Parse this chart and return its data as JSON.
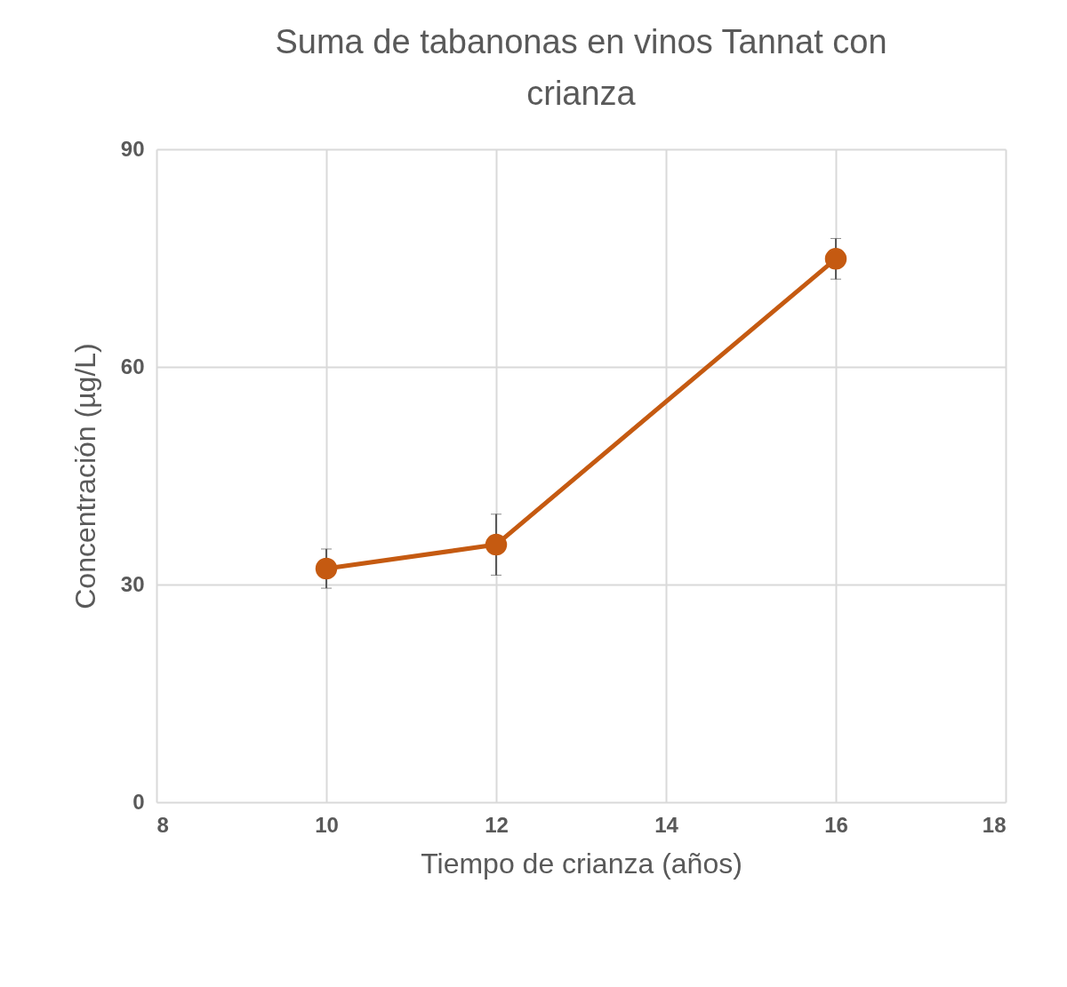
{
  "chart_data": {
    "type": "line",
    "title": "Suma de tabanonas en vinos Tannat con crianza",
    "xlabel": "Tiempo de crianza (años)",
    "ylabel": "Concentración (µg/L)",
    "x": [
      10,
      12,
      16
    ],
    "series": [
      {
        "color": "#c55a11",
        "values": [
          32.2,
          35.5,
          74.9
        ],
        "errors": [
          2.7,
          4.2,
          2.8
        ]
      }
    ],
    "xlim": [
      8,
      18
    ],
    "xticks": [
      8,
      10,
      12,
      14,
      16,
      18
    ],
    "ylim": [
      0,
      90
    ],
    "yticks": [
      0,
      30,
      60,
      90
    ],
    "grid": true,
    "marker": "circle",
    "line_style": "solid"
  }
}
